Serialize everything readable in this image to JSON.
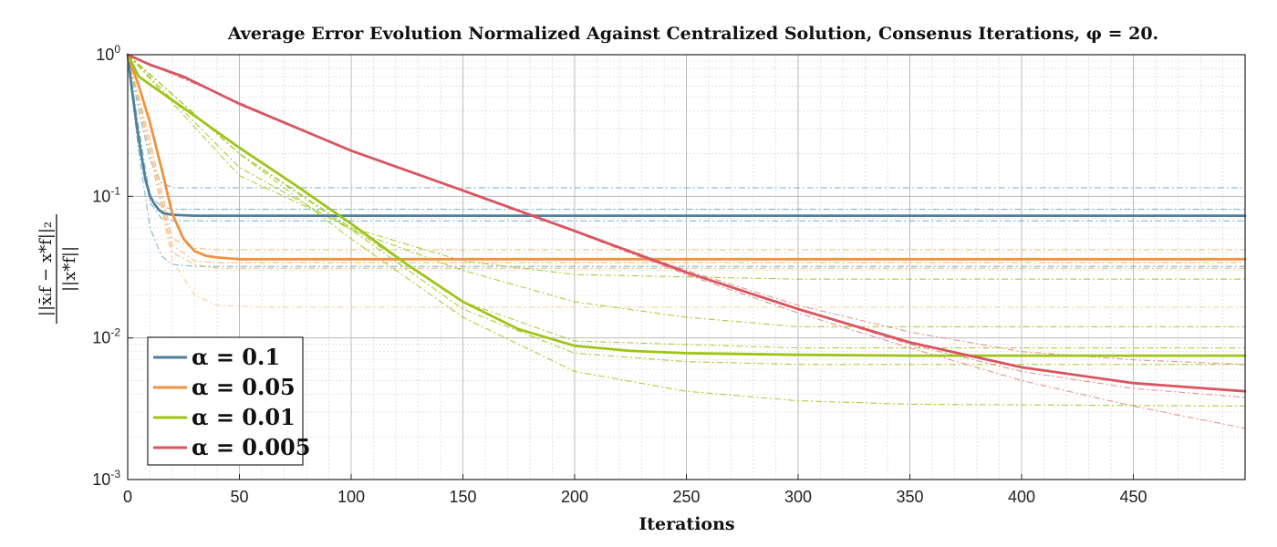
{
  "chart_data": {
    "type": "line",
    "title": "Average Error Evolution Normalized Against Centralized Solution, Consenus Iterations, φ = 20.",
    "xlabel": "Iterations",
    "ylabel": "||x̄_f^i − x_f^*||_2 / ||x_f^*||",
    "xlim": [
      0,
      500
    ],
    "ylim": [
      0.001,
      1
    ],
    "yscale": "log",
    "grid": true,
    "minor_grid": true,
    "legend_position": "bottom-left",
    "x_ticks": [
      0,
      50,
      100,
      150,
      200,
      250,
      300,
      350,
      400,
      450
    ],
    "x_tick_labels": [
      "0",
      "50",
      "100",
      "150",
      "200",
      "250",
      "300",
      "350",
      "400",
      "450"
    ],
    "y_ticks": [
      {
        "base": "10",
        "exp": "0",
        "value": 1
      },
      {
        "base": "10",
        "exp": "-1",
        "value": 0.1
      },
      {
        "base": "10",
        "exp": "-2",
        "value": 0.01
      },
      {
        "base": "10",
        "exp": "-3",
        "value": 0.001
      }
    ],
    "series": [
      {
        "name": "α = 0.1",
        "color": "#4f7f9a",
        "x": [
          0,
          2,
          4,
          6,
          8,
          10,
          12,
          14,
          16,
          20,
          30,
          500
        ],
        "values": [
          1.0,
          0.55,
          0.32,
          0.2,
          0.13,
          0.1,
          0.088,
          0.08,
          0.076,
          0.074,
          0.073,
          0.073
        ]
      },
      {
        "name": "α = 0.05",
        "color": "#f0923e",
        "x": [
          0,
          5,
          10,
          15,
          20,
          25,
          30,
          35,
          40,
          50,
          500
        ],
        "values": [
          1.0,
          0.6,
          0.33,
          0.16,
          0.075,
          0.05,
          0.041,
          0.038,
          0.037,
          0.036,
          0.036
        ]
      },
      {
        "name": "α = 0.01",
        "color": "#9dc517",
        "x": [
          0,
          5,
          25,
          50,
          75,
          100,
          125,
          150,
          175,
          200,
          225,
          250,
          300,
          350,
          500
        ],
        "values": [
          1.0,
          0.7,
          0.42,
          0.22,
          0.12,
          0.064,
          0.033,
          0.018,
          0.0115,
          0.0088,
          0.0081,
          0.0078,
          0.0076,
          0.0075,
          0.0075
        ]
      },
      {
        "name": "α = 0.005",
        "color": "#d9545f",
        "x": [
          0,
          10,
          25,
          50,
          100,
          150,
          200,
          250,
          300,
          350,
          400,
          450,
          500
        ],
        "values": [
          1.0,
          0.85,
          0.7,
          0.45,
          0.21,
          0.11,
          0.057,
          0.029,
          0.016,
          0.0093,
          0.0062,
          0.0048,
          0.0042
        ]
      }
    ],
    "agent_traces": [
      {
        "color": "#6aaac9",
        "x": [
          0,
          5,
          10,
          15,
          20,
          500
        ],
        "values": [
          1.0,
          0.4,
          0.18,
          0.125,
          0.115,
          0.115
        ]
      },
      {
        "color": "#6aaac9",
        "x": [
          0,
          5,
          10,
          15,
          20,
          500
        ],
        "values": [
          1.0,
          0.3,
          0.1,
          0.085,
          0.081,
          0.081
        ]
      },
      {
        "color": "#6aaac9",
        "x": [
          0,
          5,
          10,
          15,
          20,
          500
        ],
        "values": [
          1.0,
          0.25,
          0.09,
          0.07,
          0.067,
          0.067
        ]
      },
      {
        "color": "#6aaac9",
        "x": [
          0,
          5,
          10,
          15,
          20,
          30,
          500
        ],
        "values": [
          1.0,
          0.2,
          0.06,
          0.038,
          0.033,
          0.032,
          0.032
        ]
      },
      {
        "color": "#f3b06c",
        "x": [
          0,
          10,
          20,
          30,
          40,
          500
        ],
        "values": [
          1.0,
          0.25,
          0.05,
          0.043,
          0.042,
          0.042
        ]
      },
      {
        "color": "#f3b06c",
        "x": [
          0,
          10,
          20,
          30,
          40,
          500
        ],
        "values": [
          1.0,
          0.22,
          0.045,
          0.035,
          0.034,
          0.034
        ]
      },
      {
        "color": "#f3b06c",
        "x": [
          0,
          10,
          20,
          30,
          40,
          500
        ],
        "values": [
          1.0,
          0.2,
          0.04,
          0.033,
          0.031,
          0.031
        ]
      },
      {
        "color": "#f7c98a",
        "x": [
          0,
          10,
          20,
          30,
          40,
          60,
          500
        ],
        "values": [
          1.0,
          0.2,
          0.035,
          0.02,
          0.017,
          0.0165,
          0.0165
        ]
      },
      {
        "color": "#9dc517",
        "x": [
          0,
          50,
          100,
          150,
          200,
          250,
          300,
          500
        ],
        "values": [
          1.0,
          0.14,
          0.06,
          0.035,
          0.028,
          0.027,
          0.026,
          0.026
        ]
      },
      {
        "color": "#9dc517",
        "x": [
          0,
          50,
          100,
          150,
          200,
          250,
          300,
          500
        ],
        "values": [
          1.0,
          0.16,
          0.058,
          0.03,
          0.018,
          0.014,
          0.012,
          0.012
        ]
      },
      {
        "color": "#9dc517",
        "x": [
          0,
          50,
          100,
          150,
          200,
          300,
          500
        ],
        "values": [
          1.0,
          0.2,
          0.06,
          0.018,
          0.0095,
          0.0085,
          0.0085
        ]
      },
      {
        "color": "#9dc517",
        "x": [
          0,
          50,
          100,
          150,
          200,
          250,
          300,
          500
        ],
        "values": [
          1.0,
          0.2,
          0.058,
          0.016,
          0.0078,
          0.0068,
          0.0065,
          0.0065
        ]
      },
      {
        "color": "#9dc517",
        "x": [
          0,
          50,
          100,
          150,
          200,
          250,
          300,
          350,
          500
        ],
        "values": [
          1.0,
          0.2,
          0.05,
          0.014,
          0.0058,
          0.0042,
          0.0036,
          0.0034,
          0.0033
        ]
      },
      {
        "color": "#e0837f",
        "x": [
          0,
          100,
          200,
          250,
          300,
          350,
          400,
          450,
          500
        ],
        "values": [
          1.0,
          0.21,
          0.057,
          0.03,
          0.017,
          0.011,
          0.008,
          0.007,
          0.0065
        ]
      },
      {
        "color": "#e0837f",
        "x": [
          0,
          100,
          200,
          250,
          300,
          350,
          400,
          450,
          500
        ],
        "values": [
          1.0,
          0.21,
          0.057,
          0.029,
          0.016,
          0.009,
          0.0058,
          0.0044,
          0.0038
        ]
      },
      {
        "color": "#e0837f",
        "x": [
          0,
          100,
          200,
          250,
          300,
          350,
          400,
          450,
          500
        ],
        "values": [
          1.0,
          0.21,
          0.056,
          0.028,
          0.015,
          0.0085,
          0.005,
          0.0033,
          0.0023
        ]
      }
    ]
  }
}
